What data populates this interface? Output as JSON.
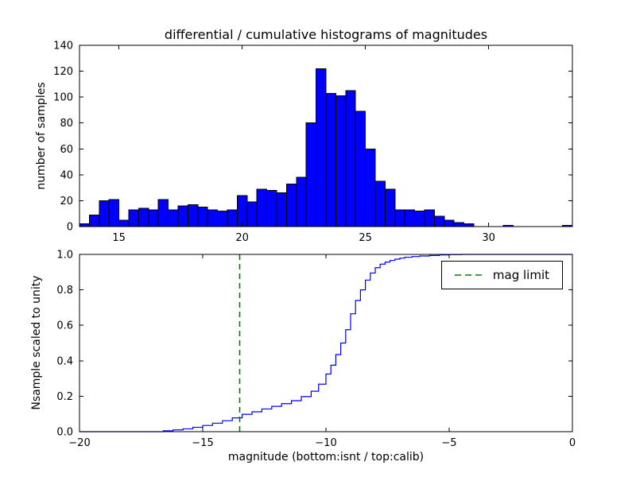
{
  "figure": {
    "background": "#ffffff"
  },
  "chart_data": [
    {
      "type": "bar",
      "title": "differential / cumulative histograms of magnitudes",
      "ylabel": "number of samples",
      "xlim": [
        13.4,
        33.4
      ],
      "ylim": [
        0,
        140
      ],
      "xticks": [
        15,
        20,
        25,
        30
      ],
      "xticklabels": [
        "15",
        "20",
        "25",
        "30"
      ],
      "yticks": [
        0,
        20,
        40,
        60,
        80,
        100,
        120,
        140
      ],
      "yticklabels": [
        "0",
        "20",
        "40",
        "60",
        "80",
        "100",
        "120",
        "140"
      ],
      "grid": false,
      "bar_color": "#0000ff",
      "bar_edge_color": "#000000",
      "bin_start": 13.4,
      "bin_width": 0.4,
      "counts": [
        2,
        9,
        20,
        21,
        5,
        13,
        14,
        13,
        21,
        13,
        16,
        17,
        15,
        13,
        12,
        13,
        24,
        19,
        29,
        28,
        26,
        33,
        38,
        80,
        122,
        103,
        101,
        105,
        89,
        60,
        35,
        29,
        13,
        13,
        12,
        13,
        8,
        5,
        3,
        2,
        0,
        0,
        0,
        1,
        0,
        0,
        0,
        0,
        0,
        1
      ]
    },
    {
      "type": "line",
      "step": true,
      "ylabel": "Nsample scaled to unity",
      "xlabel": "magnitude (bottom:isnt / top:calib)",
      "xlim": [
        -20,
        0
      ],
      "ylim": [
        0.0,
        1.0
      ],
      "xticks": [
        -20,
        -15,
        -10,
        -5,
        0
      ],
      "xticklabels": [
        "−20",
        "−15",
        "−10",
        "−5",
        "0"
      ],
      "yticks": [
        0.0,
        0.2,
        0.4,
        0.6,
        0.8,
        1.0
      ],
      "yticklabels": [
        "0.0",
        "0.2",
        "0.4",
        "0.6",
        "0.8",
        "1.0"
      ],
      "grid": false,
      "line_color": "#0000ff",
      "points": [
        [
          -20,
          0
        ],
        [
          -16.6,
          0.005
        ],
        [
          -16.2,
          0.01
        ],
        [
          -15.8,
          0.016
        ],
        [
          -15.4,
          0.025
        ],
        [
          -15,
          0.035
        ],
        [
          -14.6,
          0.048
        ],
        [
          -14.2,
          0.062
        ],
        [
          -13.8,
          0.078
        ],
        [
          -13.4,
          0.098
        ],
        [
          -13,
          0.112
        ],
        [
          -12.6,
          0.128
        ],
        [
          -12.2,
          0.143
        ],
        [
          -11.8,
          0.158
        ],
        [
          -11.4,
          0.175
        ],
        [
          -11,
          0.198
        ],
        [
          -10.6,
          0.228
        ],
        [
          -10.3,
          0.268
        ],
        [
          -10,
          0.325
        ],
        [
          -9.8,
          0.375
        ],
        [
          -9.6,
          0.435
        ],
        [
          -9.4,
          0.5
        ],
        [
          -9.2,
          0.575
        ],
        [
          -9,
          0.665
        ],
        [
          -8.8,
          0.74
        ],
        [
          -8.6,
          0.8
        ],
        [
          -8.4,
          0.855
        ],
        [
          -8.2,
          0.895
        ],
        [
          -8,
          0.925
        ],
        [
          -7.8,
          0.945
        ],
        [
          -7.6,
          0.957
        ],
        [
          -7.4,
          0.966
        ],
        [
          -7.2,
          0.973
        ],
        [
          -7,
          0.979
        ],
        [
          -6.8,
          0.984
        ],
        [
          -6.5,
          0.988
        ],
        [
          -6.2,
          0.991
        ],
        [
          -5.8,
          0.994
        ],
        [
          -5.4,
          0.997
        ],
        [
          -5,
          0.999
        ],
        [
          -4.5,
          1
        ],
        [
          0,
          1
        ]
      ],
      "vline": {
        "x": -13.5,
        "color": "#008000",
        "style": "dashed"
      },
      "legend": {
        "label": "mag limit",
        "position": "upper right"
      }
    }
  ]
}
